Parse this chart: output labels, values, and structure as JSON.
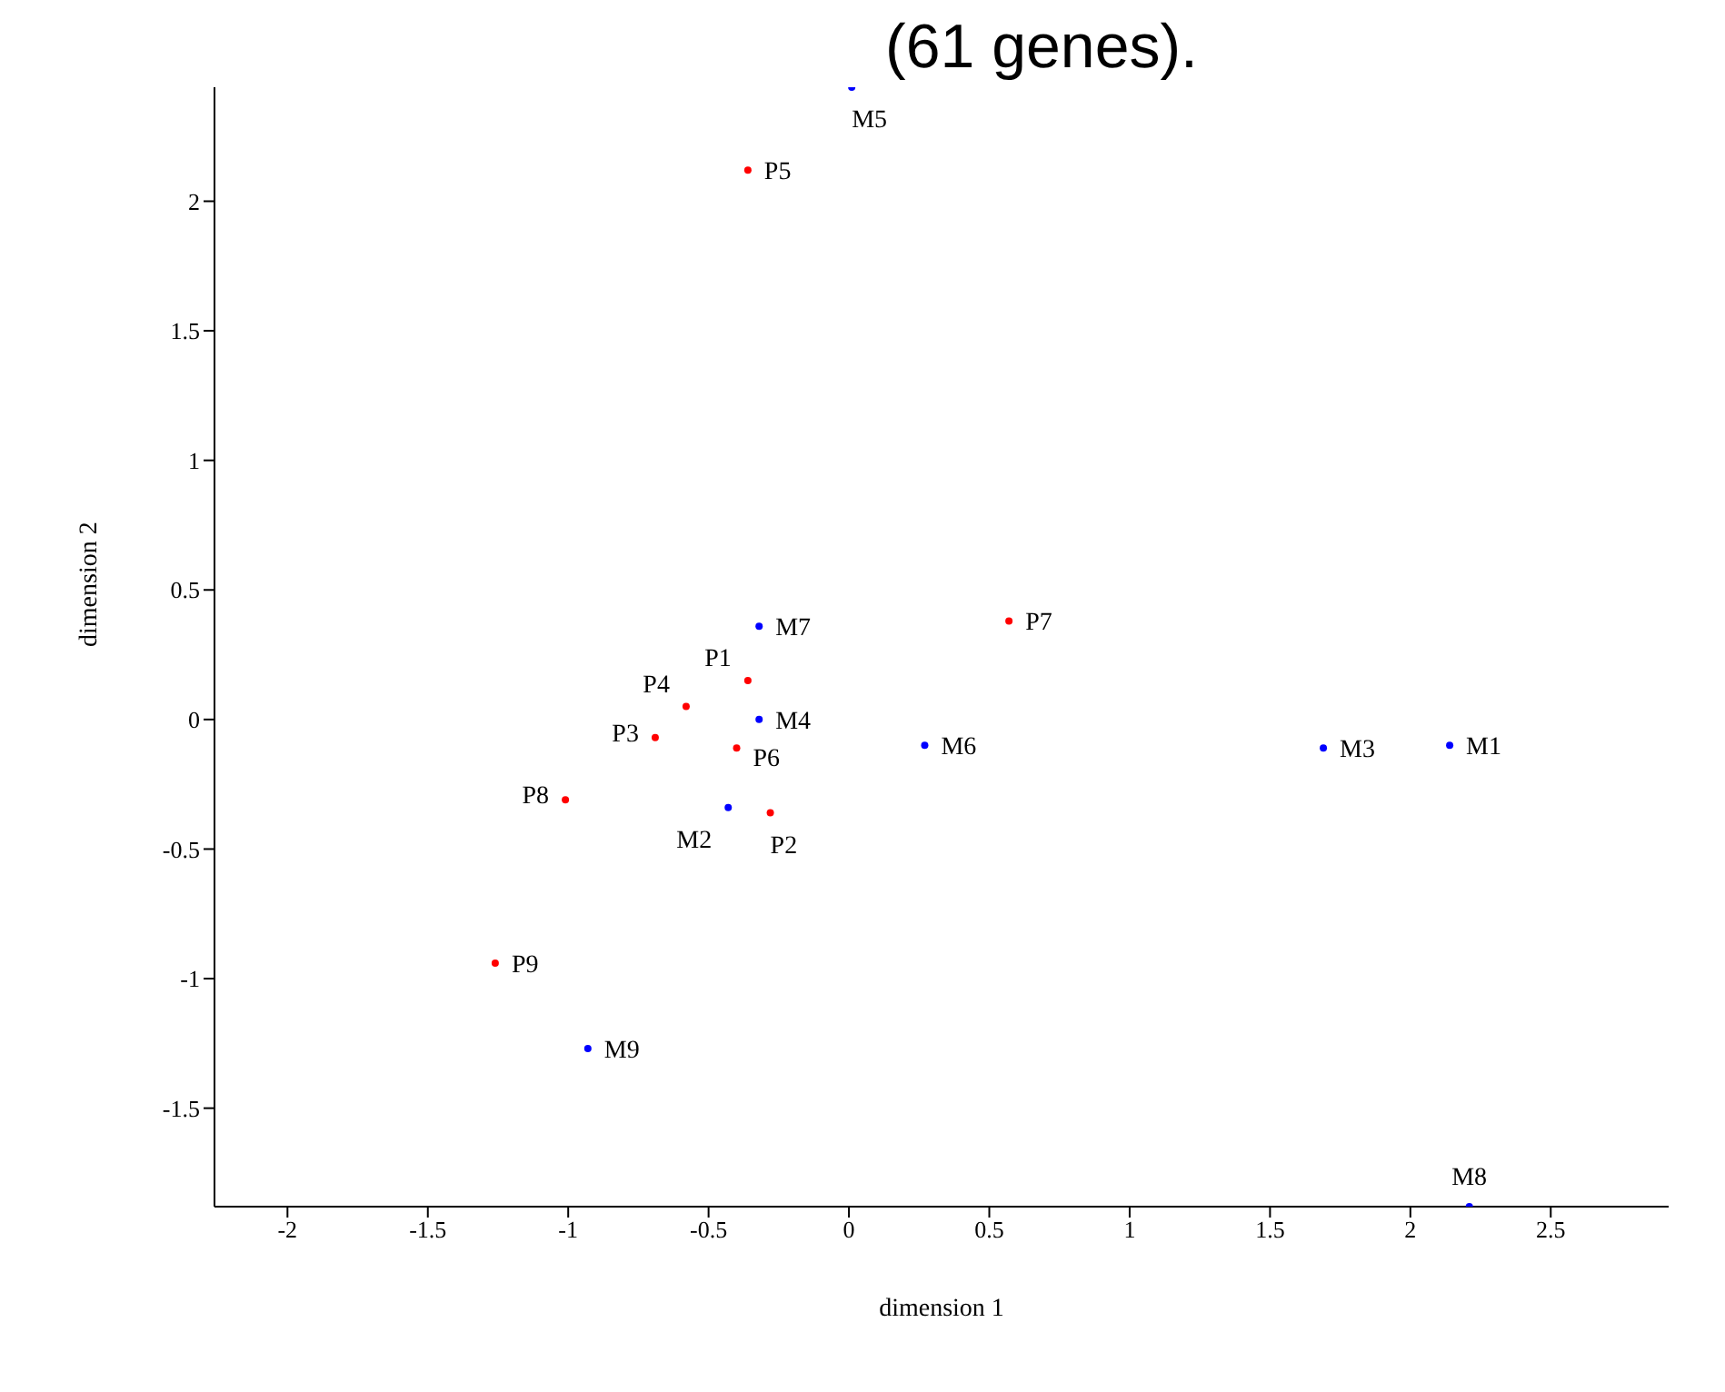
{
  "chart_data": {
    "type": "scatter",
    "title": "(61 genes).",
    "xlabel": "dimension 1",
    "ylabel": "dimension 2",
    "xlim": [
      -2.26,
      2.92
    ],
    "ylim": [
      -1.88,
      2.44
    ],
    "xticks": [
      -2,
      -1.5,
      -1,
      -0.5,
      0,
      0.5,
      1,
      1.5,
      2,
      2.5
    ],
    "yticks": [
      -1.5,
      -1,
      -0.5,
      0,
      0.5,
      1,
      1.5,
      2
    ],
    "grid": false,
    "marker": "circle",
    "series": [
      {
        "color": "#ff0000",
        "x": [
          -0.36,
          -0.28,
          -0.69,
          -0.58,
          -0.36,
          -0.4,
          0.57,
          -1.01,
          -1.26
        ],
        "values": [
          0.15,
          -0.36,
          -0.07,
          0.05,
          2.12,
          -0.11,
          0.38,
          -0.31,
          -0.94
        ],
        "value_labels": [
          "P1",
          "P2",
          "P3",
          "P4",
          "P5",
          "P6",
          "P7",
          "P8",
          "P9"
        ]
      },
      {
        "color": "#0000ff",
        "x": [
          2.14,
          -0.43,
          1.69,
          -0.32,
          0.01,
          0.27,
          -0.32,
          2.21,
          -0.93
        ],
        "values": [
          -0.1,
          -0.34,
          -0.11,
          0.0,
          2.44,
          -0.1,
          0.36,
          -1.88,
          -1.27
        ],
        "value_labels": [
          "M1",
          "M2",
          "M3",
          "M4",
          "M5",
          "M6",
          "M7",
          "M8",
          "M9"
        ]
      }
    ]
  }
}
